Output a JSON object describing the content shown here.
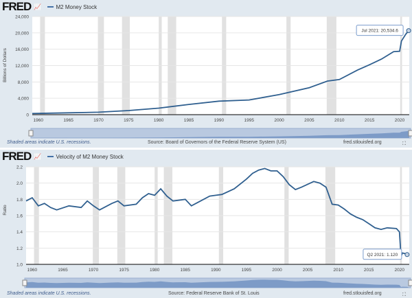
{
  "logo": "FRED",
  "panels": [
    {
      "series_label": "M2 Money Stock",
      "footer_note": "Shaded areas indicate U.S. recessions.",
      "source": "Source: Board of Governors of the Federal Reserve System (US)",
      "site": "fred.stlouisfed.org"
    },
    {
      "series_label": "Velocity of M2 Money Stock",
      "footer_note": "Shaded areas indicate U.S. recessions.",
      "source": "Source: Federal Reserve Bank of St. Louis",
      "site": "fred.stlouisfed.org"
    }
  ],
  "colors": {
    "line": "#2f5f8f",
    "recession": "#e1e1e1",
    "bg": "#e1e9f0"
  },
  "chart_data": [
    {
      "type": "line",
      "title": "M2 Money Stock",
      "ylabel": "Billions of Dollars",
      "ylim": [
        0,
        24000
      ],
      "yticks": [
        0,
        4000,
        8000,
        12000,
        16000,
        20000,
        24000
      ],
      "ytick_labels": [
        "0",
        "4,000",
        "8,000",
        "12,000",
        "16,000",
        "20,000",
        "24,000"
      ],
      "xlim": [
        1959,
        2021.6
      ],
      "xticks": [
        1960,
        1965,
        1970,
        1975,
        1980,
        1985,
        1990,
        1995,
        2000,
        2005,
        2010,
        2015,
        2020
      ],
      "x": [
        1959,
        1965,
        1970,
        1975,
        1980,
        1985,
        1990,
        1995,
        2000,
        2005,
        2008,
        2010,
        2013,
        2015,
        2017,
        2019,
        2020,
        2020.3,
        2021,
        2021.5
      ],
      "y": [
        290,
        460,
        600,
        1000,
        1600,
        2500,
        3300,
        3600,
        4900,
        6600,
        8200,
        8600,
        10900,
        12200,
        13600,
        15400,
        15500,
        18000,
        19600,
        20534.6
      ],
      "annotation": "Jul 2021: 20,534.6"
    },
    {
      "type": "line",
      "title": "Velocity of M2 Money Stock",
      "ylabel": "Ratio",
      "ylim": [
        1.0,
        2.2
      ],
      "yticks": [
        1.0,
        1.2,
        1.4,
        1.6,
        1.8,
        2.0,
        2.2
      ],
      "ytick_labels": [
        "1.0",
        "1.2",
        "1.4",
        "1.6",
        "1.8",
        "2.0",
        "2.2"
      ],
      "xlim": [
        1959,
        2021.6
      ],
      "xticks": [
        1960,
        1965,
        1970,
        1975,
        1980,
        1985,
        1990,
        1995,
        2000,
        2005,
        2010,
        2015,
        2020
      ],
      "x": [
        1959,
        1960,
        1961,
        1962,
        1963,
        1964,
        1966,
        1968,
        1969,
        1970,
        1971,
        1973,
        1974,
        1975,
        1977,
        1978,
        1979,
        1980,
        1981,
        1982,
        1983,
        1985,
        1986,
        1987,
        1989,
        1990,
        1991,
        1993,
        1995,
        1996,
        1997,
        1998,
        1999,
        2000,
        2001,
        2002,
        2003,
        2004,
        2006,
        2007,
        2008,
        2009,
        2010,
        2011,
        2012,
        2013,
        2014,
        2015,
        2016,
        2017,
        2018,
        2019.5,
        2020,
        2020.25,
        2020.5,
        2021,
        2021.25
      ],
      "y": [
        1.78,
        1.82,
        1.72,
        1.75,
        1.7,
        1.67,
        1.72,
        1.7,
        1.78,
        1.72,
        1.67,
        1.75,
        1.78,
        1.72,
        1.74,
        1.82,
        1.87,
        1.85,
        1.93,
        1.84,
        1.78,
        1.8,
        1.72,
        1.76,
        1.84,
        1.85,
        1.86,
        1.93,
        2.05,
        2.12,
        2.16,
        2.18,
        2.15,
        2.15,
        2.08,
        1.98,
        1.92,
        1.95,
        2.02,
        2.0,
        1.95,
        1.74,
        1.73,
        1.68,
        1.62,
        1.58,
        1.55,
        1.5,
        1.45,
        1.43,
        1.45,
        1.44,
        1.4,
        1.1,
        1.14,
        1.13,
        1.12
      ],
      "annotation": "Q2 2021: 1.120"
    }
  ],
  "recessions": [
    [
      1960.3,
      1961.1
    ],
    [
      1969.9,
      1970.9
    ],
    [
      1973.9,
      1975.2
    ],
    [
      1980,
      1980.5
    ],
    [
      1981.5,
      1982.9
    ],
    [
      1990.5,
      1991.2
    ],
    [
      2001.2,
      2001.9
    ],
    [
      2007.9,
      2009.5
    ],
    [
      2020.1,
      2020.4
    ]
  ]
}
